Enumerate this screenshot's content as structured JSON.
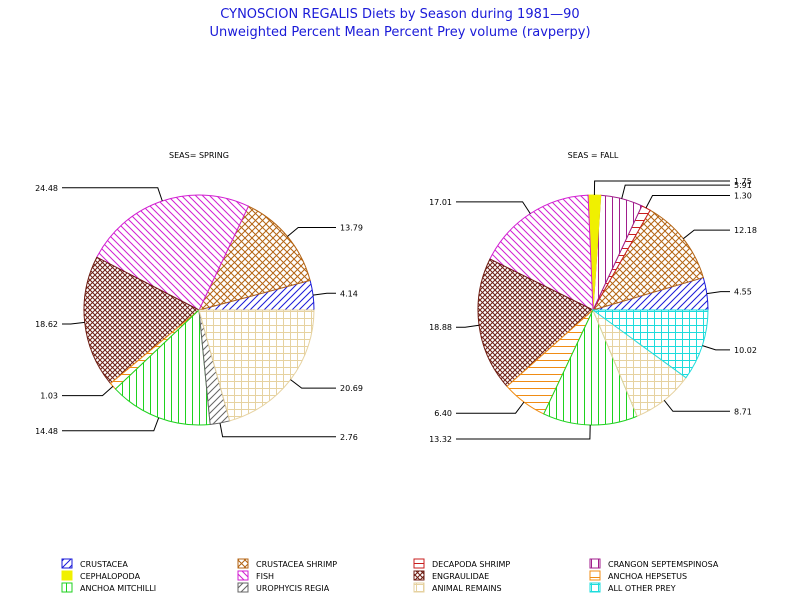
{
  "chart_data": {
    "type": "pie",
    "title": "CYNOSCION REGALIS Diets by Season during 1981—90",
    "subtitle": "Unweighted Percent Mean Percent Prey  volume (ravperpy)",
    "title_color": "#1a1ad8",
    "categories": [
      "CRUSTACEA",
      "CRUSTACEA SHRIMP",
      "DECAPODA SHRIMP",
      "CRANGON SEPTEMSPINOSA",
      "CEPHALOPODA",
      "FISH",
      "ENGRAULIDAE",
      "ANCHOA HEPSETUS",
      "ANCHOA MITCHILLI",
      "UROPHYCIS REGIA",
      "ANIMAL REMAINS",
      "ALL OTHER PREY"
    ],
    "legend_position": "bottom",
    "pies": [
      {
        "name": "SEAS= SPRING",
        "slices": [
          {
            "category": "CRUSTACEA",
            "label": "4.14",
            "value": 4.14
          },
          {
            "category": "CRUSTACEA SHRIMP",
            "label": "13.79",
            "value": 13.79
          },
          {
            "category": "FISH",
            "label": "24.48",
            "value": 24.48
          },
          {
            "category": "ENGRAULIDAE",
            "label": "18.62",
            "value": 18.62
          },
          {
            "category": "ANCHOA HEPSETUS",
            "label": "1.03",
            "value": 1.03
          },
          {
            "category": "ANCHOA MITCHILLI",
            "label": "14.48",
            "value": 14.48
          },
          {
            "category": "UROPHYCIS REGIA",
            "label": "2.76",
            "value": 2.76
          },
          {
            "category": "ANIMAL REMAINS",
            "label": "20.69",
            "value": 20.69
          }
        ]
      },
      {
        "name": "SEAS = FALL",
        "slices": [
          {
            "category": "CRUSTACEA",
            "label": "4.55",
            "value": 4.55
          },
          {
            "category": "CRUSTACEA SHRIMP",
            "label": "12.18",
            "value": 12.18
          },
          {
            "category": "DECAPODA SHRIMP",
            "label": "1.30",
            "value": 1.3
          },
          {
            "category": "CRANGON SEPTEMSPINOSA",
            "label": "5.91",
            "value": 5.91
          },
          {
            "category": "CEPHALOPODA",
            "label": "1.75",
            "value": 1.75
          },
          {
            "category": "FISH",
            "label": "17.01",
            "value": 17.01
          },
          {
            "category": "ENGRAULIDAE",
            "label": "18.88",
            "value": 18.88
          },
          {
            "category": "ANCHOA HEPSETUS",
            "label": "6.40",
            "value": 6.4
          },
          {
            "category": "ANCHOA MITCHILLI",
            "label": "13.32",
            "value": 13.32
          },
          {
            "category": "ANIMAL REMAINS",
            "label": "8.71",
            "value": 8.71
          },
          {
            "category": "ALL OTHER PREY",
            "label": "10.02",
            "value": 10.02
          }
        ]
      }
    ]
  },
  "styles": {
    "CRUSTACEA": {
      "color": "#1a1ad8",
      "pattern": "diag-right"
    },
    "CRUSTACEA SHRIMP": {
      "color": "#b46414",
      "pattern": "crosshatch"
    },
    "DECAPODA SHRIMP": {
      "color": "#c81e1e",
      "pattern": "horizontal"
    },
    "CRANGON SEPTEMSPINOSA": {
      "color": "#a01e8c",
      "pattern": "vertical"
    },
    "CEPHALOPODA": {
      "color": "#f0f000",
      "pattern": "solid"
    },
    "FISH": {
      "color": "#d21ed2",
      "pattern": "diag-left"
    },
    "ENGRAULIDAE": {
      "color": "#6e1e14",
      "pattern": "crosshatch-dense"
    },
    "ANCHOA HEPSETUS": {
      "color": "#f08c14",
      "pattern": "horizontal"
    },
    "ANCHOA MITCHILLI": {
      "color": "#1ed21e",
      "pattern": "vertical"
    },
    "UROPHYCIS REGIA": {
      "color": "#646464",
      "pattern": "diag-right"
    },
    "ANIMAL REMAINS": {
      "color": "#e6d2a0",
      "pattern": "grid"
    },
    "ALL OTHER PREY": {
      "color": "#1edcdc",
      "pattern": "grid"
    }
  }
}
